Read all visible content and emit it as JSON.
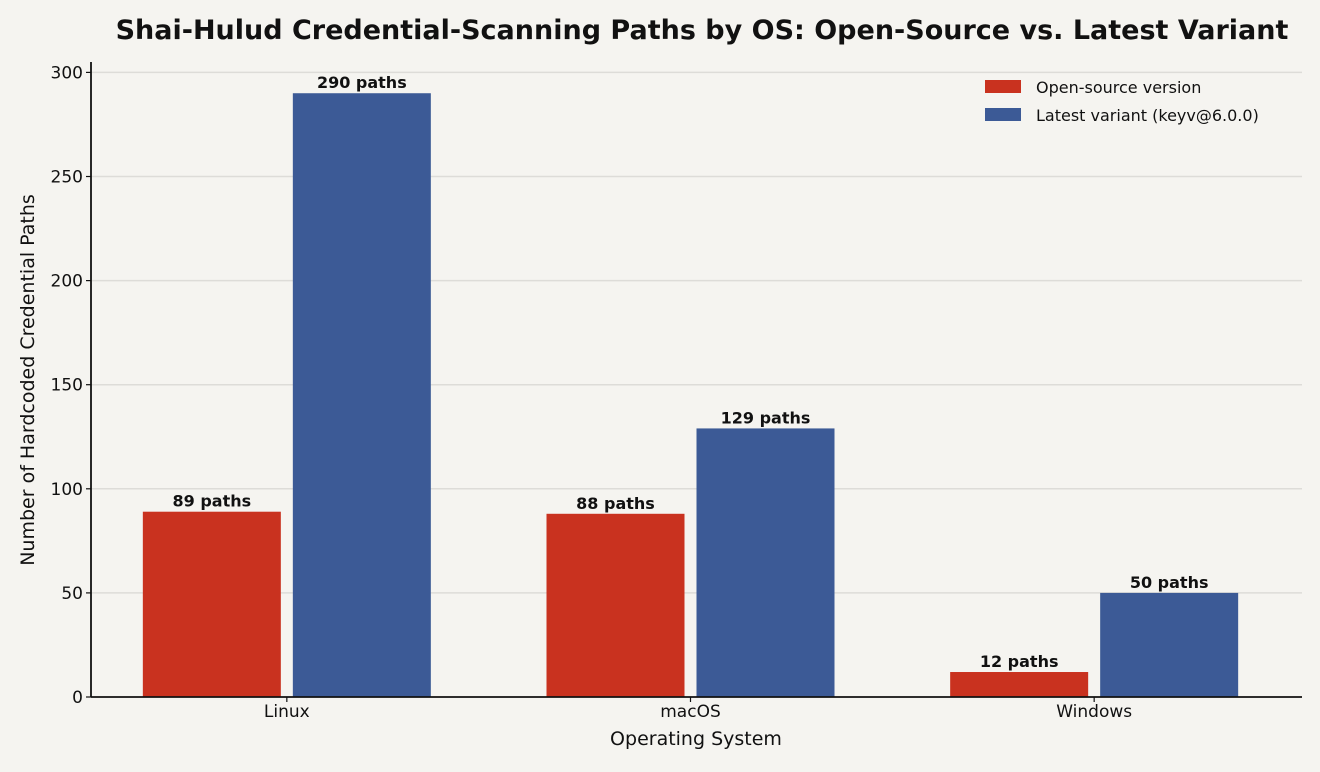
{
  "chart_data": {
    "type": "bar",
    "title": "Shai-Hulud Credential-Scanning Paths by OS: Open-Source vs. Latest Variant",
    "xlabel": "Operating System",
    "ylabel": "Number of Hardcoded Credential Paths",
    "categories": [
      "Linux",
      "macOS",
      "Windows"
    ],
    "series": [
      {
        "name": "Open-source version",
        "color": "#c9321f",
        "values": [
          89,
          88,
          12
        ],
        "labels": [
          "89 paths",
          "88 paths",
          "12 paths"
        ]
      },
      {
        "name": "Latest variant (keyv@6.0.0)",
        "color": "#3c5a96",
        "values": [
          290,
          129,
          50
        ],
        "labels": [
          "290 paths",
          "129 paths",
          "50 paths"
        ]
      }
    ],
    "ylim": [
      0,
      305
    ],
    "yticks": [
      0,
      50,
      100,
      150,
      200,
      250,
      300
    ],
    "grid": true,
    "legend_position": "top-right"
  }
}
